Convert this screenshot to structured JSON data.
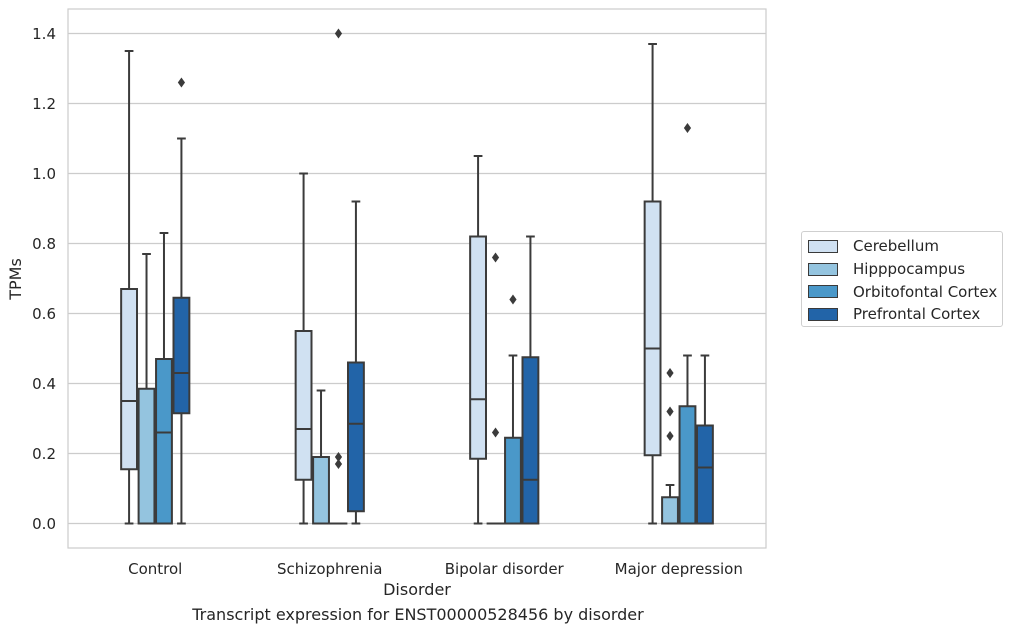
{
  "chart_data": {
    "type": "box",
    "caption": "Transcript expression for ENST00000528456 by disorder",
    "xlabel": "Disorder",
    "ylabel": "TPMs",
    "ylim": [
      -0.07,
      1.47
    ],
    "yticks": [
      "0.0",
      "0.2",
      "0.4",
      "0.6",
      "0.8",
      "1.0",
      "1.2",
      "1.4"
    ],
    "ytick_values": [
      0,
      0.2,
      0.4,
      0.6,
      0.8,
      1.0,
      1.2,
      1.4
    ],
    "grid": true,
    "legend_position": "right",
    "categories": [
      "Control",
      "Schizophrenia",
      "Bipolar disorder",
      "Major depression"
    ],
    "series": [
      {
        "name": "Cerebellum",
        "color": "#d0e1f2",
        "boxes": [
          {
            "whisker_low": 0,
            "q1": 0.155,
            "median": 0.35,
            "q3": 0.67,
            "whisker_high": 1.35,
            "outliers": []
          },
          {
            "whisker_low": 0,
            "q1": 0.125,
            "median": 0.27,
            "q3": 0.55,
            "whisker_high": 1.0,
            "outliers": []
          },
          {
            "whisker_low": 0,
            "q1": 0.185,
            "median": 0.355,
            "q3": 0.82,
            "whisker_high": 1.05,
            "outliers": []
          },
          {
            "whisker_low": 0,
            "q1": 0.195,
            "median": 0.5,
            "q3": 0.92,
            "whisker_high": 1.37,
            "outliers": []
          }
        ]
      },
      {
        "name": "Hipppocampus",
        "color": "#94c4df",
        "boxes": [
          {
            "whisker_low": 0,
            "q1": 0,
            "median": 0,
            "q3": 0.385,
            "whisker_high": 0.77,
            "outliers": []
          },
          {
            "whisker_low": 0,
            "q1": 0,
            "median": 0,
            "q3": 0.19,
            "whisker_high": 0.38,
            "outliers": []
          },
          {
            "whisker_low": 0,
            "q1": 0,
            "median": 0,
            "q3": 0,
            "whisker_high": 0,
            "outliers": [
              0.26,
              0.76
            ]
          },
          {
            "whisker_low": 0,
            "q1": 0,
            "median": 0,
            "q3": 0.075,
            "whisker_high": 0.11,
            "outliers": [
              0.25,
              0.32,
              0.43
            ]
          }
        ]
      },
      {
        "name": "Orbitofontal Cortex",
        "color": "#4a98c9",
        "boxes": [
          {
            "whisker_low": 0,
            "q1": 0,
            "median": 0.26,
            "q3": 0.47,
            "whisker_high": 0.83,
            "outliers": []
          },
          {
            "whisker_low": 0,
            "q1": 0,
            "median": 0,
            "q3": 0,
            "whisker_high": 0,
            "outliers": [
              0.17,
              0.19,
              1.4
            ]
          },
          {
            "whisker_low": 0,
            "q1": 0,
            "median": 0,
            "q3": 0.245,
            "whisker_high": 0.48,
            "outliers": [
              0.64
            ]
          },
          {
            "whisker_low": 0,
            "q1": 0,
            "median": 0,
            "q3": 0.335,
            "whisker_high": 0.48,
            "outliers": [
              1.13
            ]
          }
        ]
      },
      {
        "name": "Prefrontal Cortex",
        "color": "#2264a8",
        "boxes": [
          {
            "whisker_low": 0,
            "q1": 0.315,
            "median": 0.43,
            "q3": 0.645,
            "whisker_high": 1.1,
            "outliers": [
              1.26
            ]
          },
          {
            "whisker_low": 0,
            "q1": 0.035,
            "median": 0.285,
            "q3": 0.46,
            "whisker_high": 0.92,
            "outliers": []
          },
          {
            "whisker_low": 0,
            "q1": 0,
            "median": 0.125,
            "q3": 0.475,
            "whisker_high": 0.82,
            "outliers": []
          },
          {
            "whisker_low": 0,
            "q1": 0,
            "median": 0.16,
            "q3": 0.28,
            "whisker_high": 0.48,
            "outliers": []
          }
        ]
      }
    ]
  }
}
